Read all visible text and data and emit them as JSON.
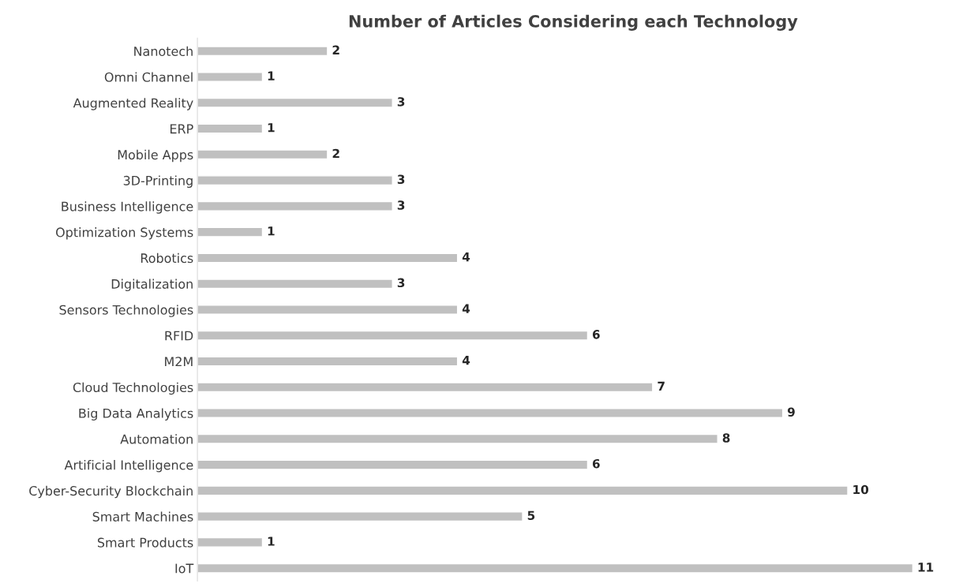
{
  "chart_data": {
    "type": "bar",
    "orientation": "horizontal",
    "title": "Number of Articles Considering each Technology",
    "categories": [
      "Nanotech",
      "Omni Channel",
      "Augmented Reality",
      "ERP",
      "Mobile Apps",
      "3D-Printing",
      "Business Intelligence",
      "Optimization Systems",
      "Robotics",
      "Digitalization",
      "Sensors Technologies",
      "RFID",
      "M2M",
      "Cloud Technologies",
      "Big Data Analytics",
      "Automation",
      "Artificial Intelligence",
      "Cyber-Security Blockchain",
      "Smart Machines",
      "Smart Products",
      "IoT"
    ],
    "values": [
      2,
      1,
      3,
      1,
      2,
      3,
      3,
      1,
      4,
      3,
      4,
      6,
      4,
      7,
      9,
      8,
      6,
      10,
      5,
      1,
      11
    ],
    "color": "#c0c0c0",
    "data_labels": true,
    "grid": false,
    "legend": false,
    "tick_labels": "y"
  }
}
